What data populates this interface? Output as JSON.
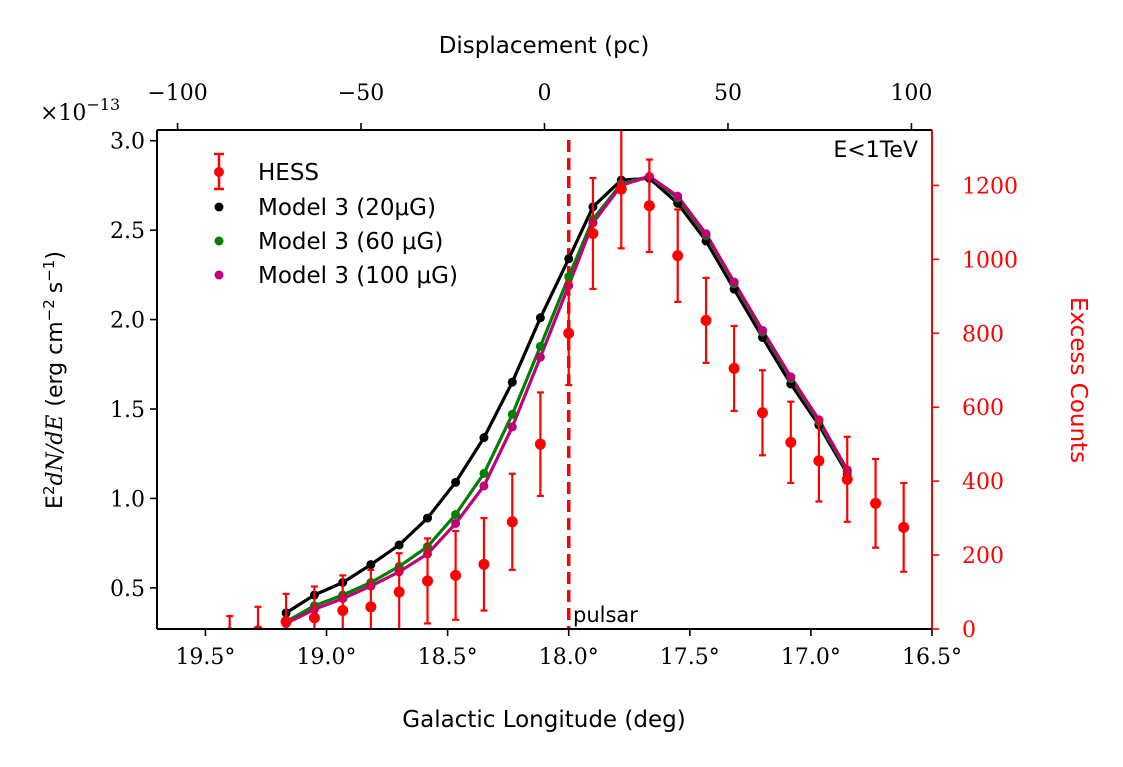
{
  "chart_data": {
    "type": "scatter",
    "corner_label": "E<1TeV",
    "annotation": "pulsar",
    "pulsar_longitude": 18.0,
    "xaxis": {
      "label": "Galactic Longitude (deg)",
      "range": [
        19.7,
        16.5
      ],
      "ticks": [
        19.5,
        19.0,
        18.5,
        18.0,
        17.5,
        17.0,
        16.5
      ],
      "tick_labels": [
        "19.5°",
        "19.0°",
        "18.5°",
        "18.0°",
        "17.5°",
        "17.0°",
        "16.5°"
      ]
    },
    "top_axis": {
      "label": "Displacement (pc)",
      "range": [
        -105.6,
        105.6
      ],
      "ticks": [
        -100,
        -50,
        0,
        50,
        100
      ],
      "tick_labels": [
        "−100",
        "−50",
        "0",
        "50",
        "100"
      ]
    },
    "yaxis_left": {
      "label_prefix": "E",
      "label_sup": "2",
      "label_math": "dN/dE",
      "label_units": "(erg cm",
      "label_units_sup": "−2",
      "label_units_end": "s",
      "label_units_end_sup": "−1",
      "label_close": ")",
      "multiplier_base": "×10",
      "multiplier_exp": "−13",
      "range": [
        0.27,
        3.06
      ],
      "ticks": [
        0.5,
        1.0,
        1.5,
        2.0,
        2.5,
        3.0
      ],
      "tick_labels": [
        "0.5",
        "1.0",
        "1.5",
        "2.0",
        "2.5",
        "3.0"
      ]
    },
    "yaxis_right": {
      "label": "Excess Counts",
      "color": "#ff0000",
      "range": [
        0,
        1350
      ],
      "ticks": [
        0,
        200,
        400,
        600,
        800,
        1000,
        1200
      ],
      "tick_labels": [
        "0",
        "200",
        "400",
        "600",
        "800",
        "1000",
        "1200"
      ]
    },
    "legend": {
      "position": "top-left",
      "entries": [
        {
          "label": "HESS",
          "color": "#ff0000",
          "kind": "errorbar"
        },
        {
          "label": "Model 3 (20μG)",
          "color": "#000000",
          "kind": "dot"
        },
        {
          "label": "Model 3 (60 μG)",
          "color": "#008000",
          "kind": "dot"
        },
        {
          "label": "Model 3 (100 μG)",
          "color": "#c0007a",
          "kind": "dot"
        }
      ]
    },
    "series": [
      {
        "name": "HESS",
        "color": "#ff0000",
        "axis": "right",
        "x": [
          19.4,
          19.283,
          19.167,
          19.05,
          18.933,
          18.817,
          18.7,
          18.583,
          18.467,
          18.35,
          18.233,
          18.117,
          18.0,
          17.9,
          17.783,
          17.667,
          17.55,
          17.433,
          17.317,
          17.2,
          17.083,
          16.967,
          16.85,
          16.733,
          16.617
        ],
        "y": [
          -10,
          -5,
          20,
          30,
          50,
          60,
          100,
          130,
          145,
          175,
          290,
          500,
          800,
          1070,
          1190,
          1145,
          1010,
          835,
          705,
          585,
          505,
          455,
          405,
          340,
          275
        ],
        "yerr": [
          45,
          65,
          75,
          85,
          95,
          100,
          105,
          115,
          120,
          125,
          130,
          140,
          140,
          150,
          160,
          125,
          125,
          115,
          115,
          115,
          110,
          110,
          115,
          120,
          120
        ]
      },
      {
        "name": "Model 3 (20μG)",
        "color": "#000000",
        "axis": "left",
        "x": [
          19.167,
          19.05,
          18.933,
          18.817,
          18.7,
          18.583,
          18.467,
          18.35,
          18.233,
          18.117,
          18.0,
          17.9,
          17.783,
          17.667,
          17.55,
          17.433,
          17.317,
          17.2,
          17.083,
          16.967,
          16.85
        ],
        "y": [
          0.36,
          0.46,
          0.53,
          0.63,
          0.74,
          0.89,
          1.09,
          1.34,
          1.65,
          2.01,
          2.34,
          2.63,
          2.78,
          2.79,
          2.65,
          2.44,
          2.17,
          1.9,
          1.64,
          1.41,
          1.14
        ]
      },
      {
        "name": "Model 3 (60 μG)",
        "color": "#008000",
        "axis": "left",
        "x": [
          19.167,
          19.05,
          18.933,
          18.817,
          18.7,
          18.583,
          18.467,
          18.35,
          18.233,
          18.117,
          18.0,
          17.9,
          17.783,
          17.667,
          17.55,
          17.433,
          17.317,
          17.2,
          17.083,
          16.967,
          16.85
        ],
        "y": [
          0.31,
          0.4,
          0.46,
          0.53,
          0.62,
          0.73,
          0.91,
          1.14,
          1.47,
          1.85,
          2.24,
          2.56,
          2.76,
          2.8,
          2.68,
          2.47,
          2.2,
          1.93,
          1.67,
          1.43,
          1.15
        ]
      },
      {
        "name": "Model 3 (100 μG)",
        "color": "#c0007a",
        "axis": "left",
        "x": [
          19.167,
          19.05,
          18.933,
          18.817,
          18.7,
          18.583,
          18.467,
          18.35,
          18.233,
          18.117,
          18.0,
          17.9,
          17.783,
          17.667,
          17.55,
          17.433,
          17.317,
          17.2,
          17.083,
          16.967,
          16.85
        ],
        "y": [
          0.3,
          0.38,
          0.44,
          0.51,
          0.59,
          0.69,
          0.86,
          1.07,
          1.4,
          1.79,
          2.19,
          2.54,
          2.75,
          2.8,
          2.69,
          2.48,
          2.21,
          1.94,
          1.68,
          1.44,
          1.16
        ]
      }
    ]
  }
}
